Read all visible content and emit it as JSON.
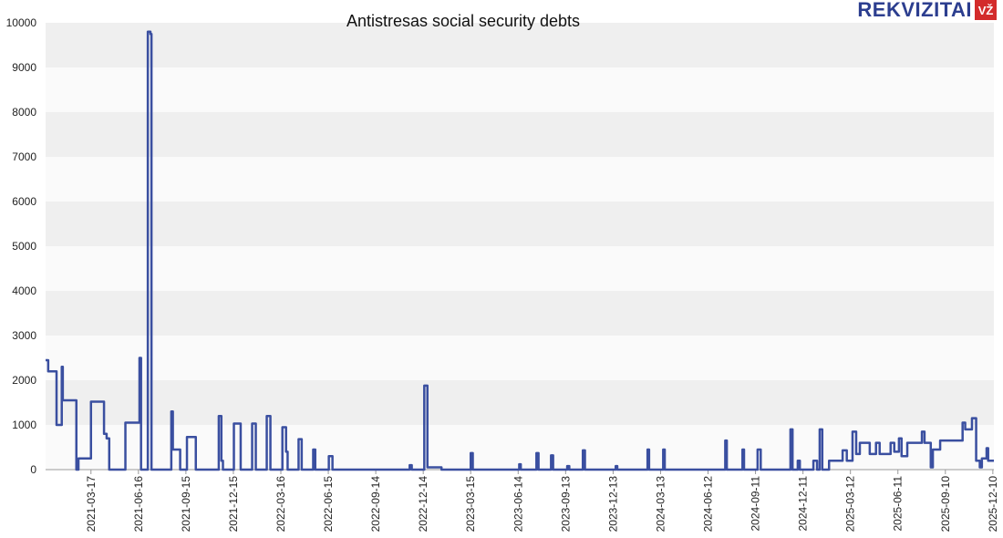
{
  "chart_data": {
    "type": "line",
    "step": true,
    "title": "Antistresas social security debts",
    "xlim": [
      "2020-12-20",
      "2025-12-12"
    ],
    "xticks": [
      "2021-03-17",
      "2021-06-16",
      "2021-09-15",
      "2021-12-15",
      "2022-03-16",
      "2022-06-15",
      "2022-09-14",
      "2022-12-14",
      "2023-03-15",
      "2023-06-14",
      "2023-09-13",
      "2023-12-13",
      "2024-03-13",
      "2024-06-12",
      "2024-09-11",
      "2024-12-11",
      "2025-03-12",
      "2025-06-11",
      "2025-09-10",
      "2025-12-10"
    ],
    "ylim": [
      0,
      10000
    ],
    "yticks": [
      0,
      1000,
      2000,
      3000,
      4000,
      5000,
      6000,
      7000,
      8000,
      9000,
      10000
    ],
    "grid": true,
    "x": [
      "2020-12-20",
      "2020-12-25",
      "2021-01-10",
      "2021-01-20",
      "2021-01-22",
      "2021-02-17",
      "2021-02-21",
      "2021-03-17",
      "2021-04-11",
      "2021-04-16",
      "2021-04-21",
      "2021-05-22",
      "2021-06-18",
      "2021-06-21",
      "2021-07-04",
      "2021-07-09",
      "2021-07-11",
      "2021-08-18",
      "2021-08-21",
      "2021-09-04",
      "2021-09-17",
      "2021-10-04",
      "2021-11-17",
      "2021-11-22",
      "2021-11-25",
      "2021-12-16",
      "2021-12-29",
      "2022-01-20",
      "2022-01-27",
      "2022-02-17",
      "2022-02-24",
      "2022-03-19",
      "2022-03-26",
      "2022-03-29",
      "2022-04-19",
      "2022-04-25",
      "2022-05-17",
      "2022-05-21",
      "2022-06-16",
      "2022-06-23",
      "2022-11-18",
      "2022-11-22",
      "2022-12-16",
      "2022-12-22",
      "2023-01-18",
      "2023-03-15",
      "2023-03-19",
      "2023-06-16",
      "2023-06-19",
      "2023-07-19",
      "2023-07-23",
      "2023-08-16",
      "2023-08-20",
      "2023-09-16",
      "2023-09-20",
      "2023-10-16",
      "2023-10-20",
      "2023-12-18",
      "2023-12-21",
      "2024-02-17",
      "2024-02-20",
      "2024-03-18",
      "2024-03-21",
      "2024-07-15",
      "2024-07-18",
      "2024-08-17",
      "2024-08-20",
      "2024-09-15",
      "2024-09-21",
      "2024-11-17",
      "2024-11-21",
      "2024-12-01",
      "2024-12-05",
      "2024-12-31",
      "2025-01-07",
      "2025-01-12",
      "2025-01-17",
      "2025-01-30",
      "2025-02-25",
      "2025-03-05",
      "2025-03-16",
      "2025-03-23",
      "2025-03-30",
      "2025-04-18",
      "2025-04-30",
      "2025-05-07",
      "2025-05-28",
      "2025-06-04",
      "2025-06-13",
      "2025-06-18",
      "2025-06-29",
      "2025-07-27",
      "2025-08-01",
      "2025-08-13",
      "2025-08-17",
      "2025-08-31",
      "2025-10-13",
      "2025-10-18",
      "2025-10-31",
      "2025-11-08",
      "2025-11-15",
      "2025-11-19",
      "2025-11-28",
      "2025-12-01"
    ],
    "series": [
      {
        "color": "#3a4fa0",
        "values": [
          2450,
          2200,
          1000,
          2300,
          1550,
          0,
          250,
          1520,
          800,
          700,
          0,
          1050,
          2500,
          0,
          9800,
          9750,
          0,
          1300,
          450,
          0,
          730,
          0,
          1200,
          200,
          0,
          1030,
          0,
          1030,
          0,
          1200,
          0,
          950,
          400,
          0,
          680,
          0,
          450,
          0,
          300,
          0,
          100,
          0,
          1880,
          50,
          0,
          370,
          0,
          120,
          0,
          370,
          0,
          320,
          0,
          80,
          0,
          430,
          0,
          80,
          0,
          450,
          0,
          450,
          0,
          650,
          0,
          450,
          0,
          450,
          0,
          900,
          0,
          200,
          0,
          200,
          0,
          900,
          0,
          200,
          430,
          200,
          850,
          350,
          600,
          350,
          600,
          350,
          600,
          400,
          700,
          300,
          600,
          850,
          600,
          50,
          450,
          650,
          1050,
          900,
          1150,
          200,
          50,
          250,
          480,
          200
        ]
      }
    ]
  },
  "logo": {
    "text": "REKVIZITAI",
    "badge": "VŽ"
  }
}
